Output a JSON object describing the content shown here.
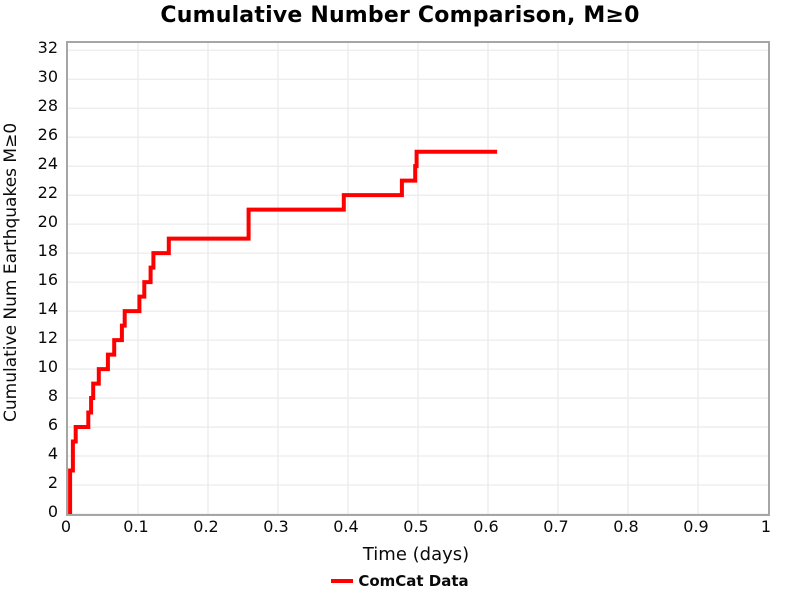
{
  "title": "Cumulative Number Comparison, M≥0",
  "legend": {
    "items": [
      {
        "label": "ComCat Data",
        "color": "#ff0000"
      }
    ]
  },
  "colors": {
    "series": "#ff0000",
    "grid": "#ececec",
    "plot_border": "#a6a6a6",
    "text": "#0a0a0a"
  },
  "chart_data": {
    "type": "line",
    "subtype": "cumulative-step",
    "title": "Cumulative Number Comparison, M≥0",
    "xlabel": "Time (days)",
    "ylabel": "Cumulative Num Earthquakes M≥0",
    "xlim": [
      0,
      1
    ],
    "ylim": [
      0,
      32.5
    ],
    "grid": true,
    "legend_position": "bottom-center",
    "x_ticks": [
      0,
      0.1,
      0.2,
      0.3,
      0.4,
      0.5,
      0.6,
      0.7,
      0.8,
      0.9,
      1
    ],
    "x_tick_labels": [
      "0",
      "0.1",
      "0.2",
      "0.3",
      "0.4",
      "0.5",
      "0.6",
      "0.7",
      "0.8",
      "0.9",
      "1"
    ],
    "y_ticks": [
      0,
      2,
      4,
      6,
      8,
      10,
      12,
      14,
      16,
      18,
      20,
      22,
      24,
      26,
      28,
      30,
      32
    ],
    "y_tick_labels": [
      "0",
      "2",
      "4",
      "6",
      "8",
      "10",
      "12",
      "14",
      "16",
      "18",
      "20",
      "22",
      "24",
      "26",
      "28",
      "30",
      "32"
    ],
    "series": [
      {
        "name": "ComCat Data",
        "color": "#ff0000",
        "line_width": 4,
        "start": [
          0.003,
          0
        ],
        "end_time": 0.613,
        "final_count": 25,
        "events": [
          [
            0.003,
            1
          ],
          [
            0.003,
            2
          ],
          [
            0.003,
            3
          ],
          [
            0.007,
            4
          ],
          [
            0.007,
            5
          ],
          [
            0.011,
            6
          ],
          [
            0.029,
            7
          ],
          [
            0.033,
            8
          ],
          [
            0.036,
            9
          ],
          [
            0.044,
            10
          ],
          [
            0.057,
            11
          ],
          [
            0.066,
            12
          ],
          [
            0.077,
            13
          ],
          [
            0.081,
            14
          ],
          [
            0.102,
            15
          ],
          [
            0.109,
            16
          ],
          [
            0.118,
            17
          ],
          [
            0.122,
            18
          ],
          [
            0.144,
            19
          ],
          [
            0.258,
            20
          ],
          [
            0.258,
            21
          ],
          [
            0.394,
            22
          ],
          [
            0.477,
            23
          ],
          [
            0.496,
            24
          ],
          [
            0.498,
            25
          ]
        ]
      }
    ]
  }
}
